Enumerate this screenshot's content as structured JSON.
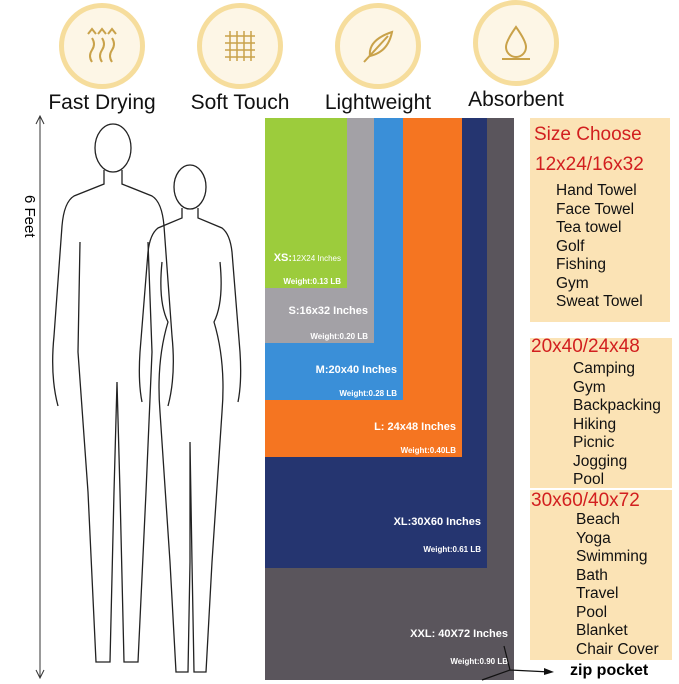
{
  "features": [
    {
      "label": "Fast Drying",
      "icon": "heat-waves-icon"
    },
    {
      "label": "Soft Touch",
      "icon": "mesh-grid-icon"
    },
    {
      "label": "Lightweight",
      "icon": "feather-icon"
    },
    {
      "label": "Absorbent",
      "icon": "water-drop-icon"
    }
  ],
  "height_label": "6 Feet",
  "sizes": [
    {
      "name": "XS:",
      "dims": "12X24 Inches",
      "weight": "Weight:0.13 LB",
      "color": "#9ccc3c"
    },
    {
      "name": "S:16x32 Inches",
      "weight": "Weight:0.20 LB",
      "color": "#a3a1a6"
    },
    {
      "name": "M:20x40 Inches",
      "weight": "Weight:0.28 LB",
      "color": "#3a8fd8"
    },
    {
      "name": "L: 24x48 Inches",
      "weight": "Weight:0.40LB",
      "color": "#f57521"
    },
    {
      "name": "XL:30X60 Inches",
      "weight": "Weight:0.61 LB",
      "color": "#253570"
    },
    {
      "name": "XXL: 40X72 Inches",
      "weight": "Weight:0.90 LB",
      "color": "#5a555c"
    }
  ],
  "zip_pocket": "zip pocket",
  "size_choose": "Size Choose",
  "groups": [
    {
      "title": "12x24/16x32",
      "items": [
        "Hand Towel",
        "Face Towel",
        "Tea towel",
        "Golf",
        "Fishing",
        "Gym",
        "Sweat Towel"
      ]
    },
    {
      "title": "20x40/24x48",
      "items": [
        "Camping",
        "Gym",
        "Backpacking",
        "Hiking",
        "Picnic",
        "Jogging",
        "Pool"
      ]
    },
    {
      "title": "30x60/40x72",
      "items": [
        "Beach",
        "Yoga",
        "Swimming",
        "Bath",
        "Travel",
        "Pool",
        "Blanket",
        "Chair Cover"
      ]
    }
  ]
}
